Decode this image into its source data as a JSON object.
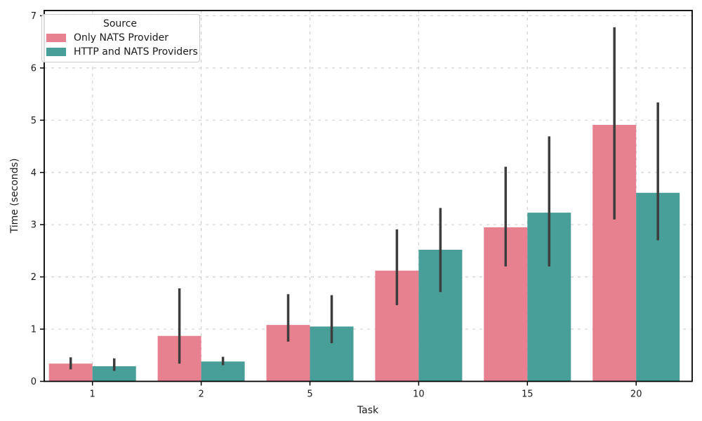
{
  "chart_data": {
    "type": "bar",
    "title": "",
    "xlabel": "Task",
    "ylabel": "Time (seconds)",
    "categories": [
      "1",
      "2",
      "5",
      "10",
      "15",
      "20"
    ],
    "series": [
      {
        "name": "Only NATS Provider",
        "color": "#e8818f",
        "values": [
          0.34,
          0.87,
          1.08,
          2.12,
          2.95,
          4.91
        ],
        "error_low": [
          0.23,
          0.34,
          0.76,
          1.46,
          2.2,
          3.1
        ],
        "error_high": [
          0.46,
          1.78,
          1.67,
          2.91,
          4.11,
          6.78
        ]
      },
      {
        "name": "HTTP and NATS Providers",
        "color": "#489e98",
        "values": [
          0.29,
          0.38,
          1.05,
          2.52,
          3.23,
          3.61
        ],
        "error_low": [
          0.2,
          0.31,
          0.73,
          1.71,
          2.2,
          2.7
        ],
        "error_high": [
          0.44,
          0.47,
          1.65,
          3.32,
          4.69,
          5.34
        ]
      }
    ],
    "ylim": [
      0,
      7.1
    ],
    "yticks": [
      0,
      1,
      2,
      3,
      4,
      5,
      6,
      7
    ],
    "legend_title": "Source",
    "legend_position": "upper-left",
    "grid": "dashed",
    "grid_color": "#d0d0d0",
    "errorbar_color": "#3d3d3d",
    "spine_color": "#000000"
  }
}
